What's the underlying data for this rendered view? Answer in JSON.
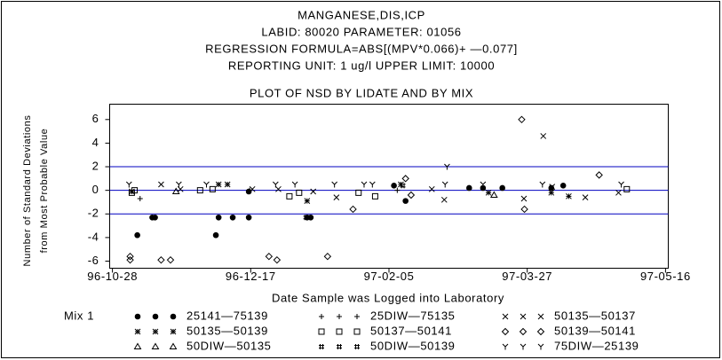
{
  "chart_data": {
    "type": "scatter",
    "title_lines": [
      "MANGANESE,DIS,ICP",
      "LABID: 80020 PARAMETER: 01056",
      "REGRESSION FORMULA=ABS[(MPV*0.066)+ —0.077]",
      "REPORTING UNIT: 1 ug/l   UPPER LIMIT: 10000"
    ],
    "title": "PLOT OF NSD BY LIDATE AND BY MIX",
    "xlabel": "Date Sample was Logged into Laboratory",
    "ylabel_lines": [
      "Number of Standard Deviations",
      "from Most Probable Value"
    ],
    "legend_title": "Mix 1",
    "xlim": [
      -1,
      201
    ],
    "ylim": [
      -6.6,
      7.3
    ],
    "xticks": [
      {
        "value": 0,
        "label": "96-10-28"
      },
      {
        "value": 50,
        "label": "96-12-17"
      },
      {
        "value": 100,
        "label": "97-02-05"
      },
      {
        "value": 150,
        "label": "97-03-27"
      },
      {
        "value": 200,
        "label": "97-05-16"
      }
    ],
    "yticks": [
      -6,
      -4,
      -2,
      0,
      2,
      4,
      6
    ],
    "hlines": [
      2,
      0,
      -2
    ],
    "hline_color": "#0000c0",
    "series": [
      {
        "name": "25141—75139",
        "marker": "dot",
        "color": "#000000",
        "x": [
          9,
          14.4,
          15.4,
          38.4,
          43.5,
          49.3,
          37.4,
          49.3,
          70.4,
          71.7,
          101.8,
          106,
          129,
          134,
          141,
          158.7,
          163
        ],
        "values": [
          -3.8,
          -2.3,
          -2.3,
          -2.3,
          -2.3,
          -2.3,
          -3.8,
          -0.1,
          -2.3,
          -2.3,
          0.4,
          -0.9,
          0.2,
          0.2,
          0.2,
          0.2,
          0.4
        ]
      },
      {
        "name": "25DIW—75135",
        "marker": "plus",
        "color": "#000000",
        "x": [
          10,
          49.6,
          103
        ],
        "values": [
          -0.7,
          0,
          0
        ]
      },
      {
        "name": "50135—50137",
        "marker": "x",
        "color": "#000000",
        "x": [
          17.6,
          24.6,
          50.6,
          60,
          72.6,
          81,
          115.5,
          120,
          148.8,
          155.8,
          159,
          171,
          183
        ],
        "values": [
          0.5,
          0.1,
          0.1,
          0.1,
          -0.1,
          -0.6,
          0.1,
          -0.8,
          -0.7,
          4.6,
          0.3,
          -0.6,
          -0.2
        ]
      },
      {
        "name": "50135—50139",
        "marker": "star",
        "color": "#000000",
        "x": [
          7,
          38.4,
          41.6,
          70.4,
          104.3,
          136,
          158.7,
          165
        ],
        "values": [
          -0.1,
          0.5,
          0.5,
          -0.9,
          0.5,
          -0.2,
          -0.2,
          -0.5
        ]
      },
      {
        "name": "50137—50141",
        "marker": "square",
        "color": "#000000",
        "x": [
          7,
          8,
          31.7,
          36.2,
          64,
          67.5,
          89,
          95,
          186
        ],
        "values": [
          -0.2,
          0,
          0,
          0.1,
          -0.5,
          -0.2,
          -0.2,
          -0.5,
          0.1
        ]
      },
      {
        "name": "50139—50141",
        "marker": "diamond",
        "color": "#000000",
        "x": [
          6.4,
          6.4,
          17.6,
          21,
          56.6,
          59.5,
          77.8,
          87,
          106,
          108,
          148,
          149,
          176
        ],
        "values": [
          -5.6,
          -5.9,
          -5.9,
          -5.9,
          -5.6,
          -5.9,
          -5.6,
          -1.6,
          1.0,
          -0.4,
          6.0,
          -1.6,
          1.3
        ]
      },
      {
        "name": "50DIW—50135",
        "marker": "triangle",
        "color": "#000000",
        "x": [
          23,
          138
        ],
        "values": [
          -0.1,
          -0.4
        ]
      },
      {
        "name": "50DIW—50139",
        "marker": "hash",
        "color": "#000000",
        "x": [
          70,
          105
        ],
        "values": [
          -2.3,
          0.4
        ]
      },
      {
        "name": "75DIW—25139",
        "marker": "y",
        "color": "#000000",
        "x": [
          6,
          24,
          34,
          59,
          66,
          80.3,
          91,
          94,
          121,
          120.3,
          134,
          155.5,
          184
        ],
        "values": [
          0.5,
          0.5,
          0.5,
          0.5,
          0.5,
          0.5,
          0.5,
          0.5,
          2.0,
          0.5,
          0.5,
          0.5,
          0.5
        ]
      }
    ]
  }
}
